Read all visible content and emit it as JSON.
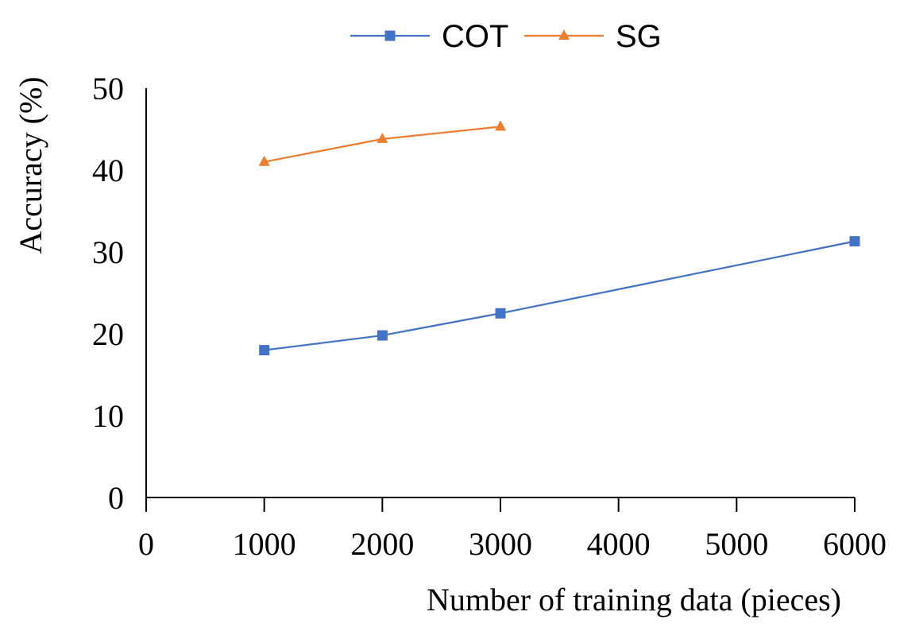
{
  "chart_data": {
    "type": "line",
    "title": "",
    "xlabel": "Number of training data (pieces)",
    "ylabel": "Accuracy (%)",
    "xlim": [
      0,
      6000
    ],
    "ylim": [
      0,
      50
    ],
    "x_ticks": [
      "0",
      "1000",
      "2000",
      "3000",
      "4000",
      "5000",
      "6000"
    ],
    "y_ticks": [
      "0",
      "10",
      "20",
      "30",
      "40",
      "50"
    ],
    "x_tick_values": [
      0,
      1000,
      2000,
      3000,
      4000,
      5000,
      6000
    ],
    "y_tick_values": [
      0,
      10,
      20,
      30,
      40,
      50
    ],
    "grid": false,
    "legend_position": "top-center",
    "series": [
      {
        "name": "COT",
        "color": "#4472C4",
        "marker": "square",
        "points": [
          [
            1000,
            18.0
          ],
          [
            2000,
            19.8
          ],
          [
            3000,
            22.5
          ],
          [
            6000,
            31.3
          ]
        ]
      },
      {
        "name": "SG",
        "color": "#ED7D31",
        "marker": "triangle",
        "points": [
          [
            1000,
            41.0
          ],
          [
            2000,
            43.8
          ],
          [
            3000,
            45.3
          ]
        ]
      }
    ]
  }
}
